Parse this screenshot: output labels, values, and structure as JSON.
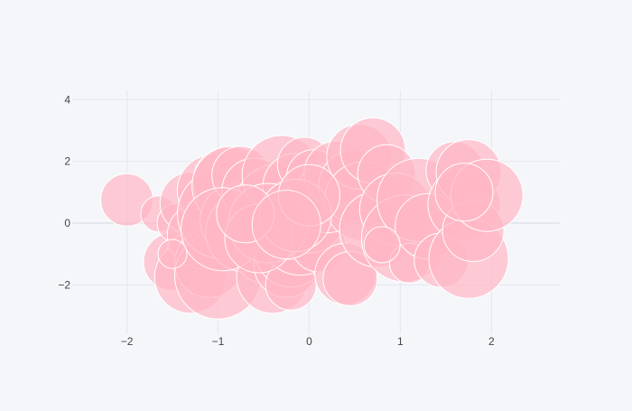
{
  "chart_data": {
    "type": "scatter",
    "title": "",
    "xlabel": "",
    "ylabel": "",
    "xlim": [
      -2.6,
      2.75
    ],
    "ylim": [
      -3.6,
      4.3
    ],
    "x_ticks": [
      -2,
      -1,
      0,
      1,
      2
    ],
    "y_ticks": [
      -2,
      0,
      2,
      4
    ],
    "x_tick_labels": [
      "−2",
      "−1",
      "0",
      "1",
      "2"
    ],
    "y_tick_labels": [
      "−2",
      "0",
      "2",
      "4"
    ],
    "grid": true,
    "legend": "none",
    "marker_color": "#ffb6c5",
    "marker_opacity": 0.7,
    "marker_line_color": "#ffffff",
    "bubble_size_units": "relative marker size",
    "series": [
      {
        "points": [
          {
            "x": -2.0,
            "y": 0.75,
            "size": 29
          },
          {
            "x": -1.65,
            "y": 0.3,
            "size": 20
          },
          {
            "x": -1.5,
            "y": -1.25,
            "size": 32
          },
          {
            "x": -1.45,
            "y": 0.0,
            "size": 22
          },
          {
            "x": -1.35,
            "y": -1.0,
            "size": 22
          },
          {
            "x": -1.3,
            "y": -1.75,
            "size": 40
          },
          {
            "x": -1.3,
            "y": 0.65,
            "size": 34
          },
          {
            "x": -1.2,
            "y": -0.4,
            "size": 36
          },
          {
            "x": -1.1,
            "y": -1.3,
            "size": 38
          },
          {
            "x": -1.05,
            "y": 1.05,
            "size": 40
          },
          {
            "x": -1.0,
            "y": -1.7,
            "size": 48
          },
          {
            "x": -0.95,
            "y": 0.3,
            "size": 50
          },
          {
            "x": -0.9,
            "y": 1.35,
            "size": 38
          },
          {
            "x": -0.85,
            "y": 1.2,
            "size": 44
          },
          {
            "x": -0.8,
            "y": 0.1,
            "size": 40
          },
          {
            "x": -0.75,
            "y": 1.55,
            "size": 32
          },
          {
            "x": -0.7,
            "y": -0.3,
            "size": 44
          },
          {
            "x": -0.6,
            "y": 1.05,
            "size": 36
          },
          {
            "x": -0.5,
            "y": -1.0,
            "size": 32
          },
          {
            "x": -0.45,
            "y": 0.75,
            "size": 34
          },
          {
            "x": -0.4,
            "y": -1.75,
            "size": 40
          },
          {
            "x": -0.35,
            "y": 0.5,
            "size": 48
          },
          {
            "x": -0.3,
            "y": 1.55,
            "size": 44
          },
          {
            "x": -0.25,
            "y": -1.35,
            "size": 36
          },
          {
            "x": -0.2,
            "y": -0.9,
            "size": 40
          },
          {
            "x": -0.2,
            "y": -2.0,
            "size": 28
          },
          {
            "x": -0.15,
            "y": 1.2,
            "size": 36
          },
          {
            "x": -0.1,
            "y": -0.4,
            "size": 44
          },
          {
            "x": -0.05,
            "y": 1.9,
            "size": 30
          },
          {
            "x": 0.0,
            "y": 0.2,
            "size": 40
          },
          {
            "x": 0.05,
            "y": 1.5,
            "size": 30
          },
          {
            "x": 0.1,
            "y": -0.7,
            "size": 30
          },
          {
            "x": 0.2,
            "y": 0.8,
            "size": 38
          },
          {
            "x": 0.3,
            "y": 1.6,
            "size": 36
          },
          {
            "x": 0.4,
            "y": -1.65,
            "size": 34
          },
          {
            "x": 0.45,
            "y": -1.8,
            "size": 30
          },
          {
            "x": 0.5,
            "y": 1.2,
            "size": 40
          },
          {
            "x": 0.55,
            "y": 2.15,
            "size": 36
          },
          {
            "x": 0.6,
            "y": 0.7,
            "size": 44
          },
          {
            "x": 0.7,
            "y": 2.35,
            "size": 36
          },
          {
            "x": 0.75,
            "y": -0.2,
            "size": 42
          },
          {
            "x": 0.85,
            "y": 1.6,
            "size": 32
          },
          {
            "x": 0.8,
            "y": -0.65,
            "size": 22
          },
          {
            "x": 0.95,
            "y": 0.45,
            "size": 40
          },
          {
            "x": 1.05,
            "y": -0.5,
            "size": 48
          },
          {
            "x": 1.1,
            "y": -1.3,
            "size": 22
          },
          {
            "x": 1.2,
            "y": 0.75,
            "size": 46
          },
          {
            "x": 1.3,
            "y": -0.1,
            "size": 36
          },
          {
            "x": 1.45,
            "y": -1.2,
            "size": 30
          },
          {
            "x": 1.6,
            "y": 1.7,
            "size": 32
          },
          {
            "x": 1.7,
            "y": 0.6,
            "size": 40
          },
          {
            "x": 1.75,
            "y": -1.15,
            "size": 44
          },
          {
            "x": 1.75,
            "y": 1.65,
            "size": 36
          },
          {
            "x": 1.8,
            "y": -0.25,
            "size": 34
          },
          {
            "x": 1.95,
            "y": 0.9,
            "size": 40
          },
          {
            "x": 1.7,
            "y": 1.0,
            "size": 32
          },
          {
            "x": -0.95,
            "y": -0.2,
            "size": 46
          },
          {
            "x": -0.45,
            "y": 0.0,
            "size": 44
          },
          {
            "x": -0.55,
            "y": -0.5,
            "size": 38
          },
          {
            "x": -0.15,
            "y": 0.25,
            "size": 40
          },
          {
            "x": -0.7,
            "y": 0.3,
            "size": 32
          },
          {
            "x": -1.5,
            "y": -1.0,
            "size": 16
          },
          {
            "x": 0.8,
            "y": -0.7,
            "size": 20
          },
          {
            "x": 0.0,
            "y": 0.9,
            "size": 34
          },
          {
            "x": -0.25,
            "y": -0.05,
            "size": 38
          }
        ]
      }
    ]
  }
}
